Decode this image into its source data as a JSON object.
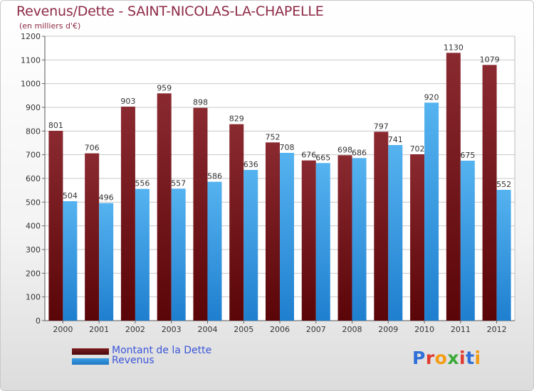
{
  "title": "Revenus/Dette - SAINT-NICOLAS-LA-CHAPELLE",
  "subtitle": "(en milliers d'€)",
  "colors": {
    "dette": "#7b1a1e",
    "revenus": "#3a9ee3",
    "text": "#8e2a45",
    "legend_text": "#3a55d8",
    "grid": "#c8c8c8"
  },
  "chart_data": {
    "type": "bar",
    "categories": [
      "2000",
      "2001",
      "2002",
      "2003",
      "2004",
      "2005",
      "2006",
      "2007",
      "2008",
      "2009",
      "2010",
      "2011",
      "2012"
    ],
    "series": [
      {
        "name": "Montant de la Dette",
        "values": [
          801,
          706,
          903,
          959,
          898,
          829,
          752,
          676,
          698,
          797,
          702,
          1130,
          1079
        ]
      },
      {
        "name": "Revenus",
        "values": [
          504,
          496,
          556,
          557,
          586,
          636,
          708,
          665,
          686,
          741,
          920,
          675,
          552
        ]
      }
    ],
    "ylim": [
      0,
      1200
    ],
    "yticks": [
      0,
      100,
      200,
      300,
      400,
      500,
      600,
      700,
      800,
      900,
      1000,
      1100,
      1200
    ],
    "grid": true,
    "legend_position": "bottom-left"
  },
  "logo": {
    "text": "Proxiti",
    "letter_colors": [
      "#2f6fd8",
      "#e03a2e",
      "#f39c12",
      "#3aa936",
      "#e03a2e",
      "#2f6fd8",
      "#f39c12"
    ]
  }
}
